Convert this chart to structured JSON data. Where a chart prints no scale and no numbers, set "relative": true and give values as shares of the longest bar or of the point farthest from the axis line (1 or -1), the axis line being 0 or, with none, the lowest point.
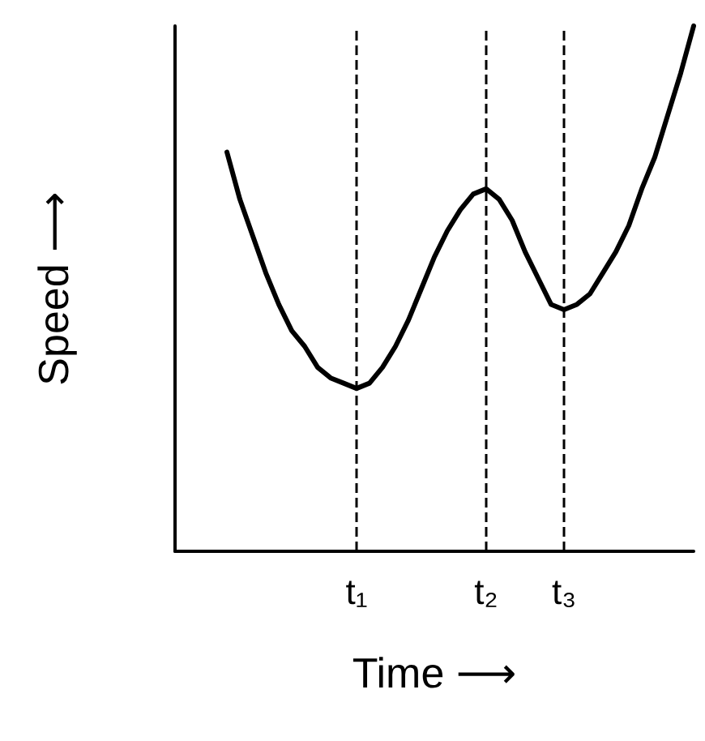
{
  "chart_data": {
    "type": "line",
    "xlabel": "Time ⟶",
    "ylabel": "Speed ⟶",
    "relative": true,
    "marker": "none",
    "line_style": "solid",
    "grid": false,
    "categories": [
      null,
      null,
      null,
      null,
      null,
      null,
      null,
      null,
      null,
      null,
      null,
      null,
      null,
      null,
      "t₁",
      null,
      null,
      null,
      null,
      null,
      null,
      null,
      null,
      null,
      "t₂",
      null,
      null,
      null,
      null,
      null,
      "t₃",
      null,
      null,
      null,
      null,
      null,
      null,
      null,
      null,
      null,
      null
    ],
    "series": [
      {
        "color": "#000000",
        "values": [
          null,
          null,
          null,
          null,
          0.76,
          0.67,
          0.6,
          0.53,
          0.47,
          0.42,
          0.39,
          0.35,
          0.33,
          0.32,
          0.31,
          0.32,
          0.35,
          0.39,
          0.44,
          0.5,
          0.56,
          0.61,
          0.65,
          0.68,
          0.69,
          0.67,
          0.63,
          0.57,
          0.52,
          0.47,
          0.46,
          0.47,
          0.49,
          0.53,
          0.57,
          0.62,
          0.69,
          0.75,
          0.83,
          0.91,
          1
        ]
      }
    ],
    "ref_lines": [
      {
        "axis": "x",
        "value": "t₁",
        "color": "#000000",
        "line_style": "dashed"
      },
      {
        "axis": "x",
        "value": "t₂",
        "color": "#000000",
        "line_style": "dashed"
      },
      {
        "axis": "x",
        "value": "t₃",
        "color": "#000000",
        "line_style": "dashed"
      }
    ]
  }
}
